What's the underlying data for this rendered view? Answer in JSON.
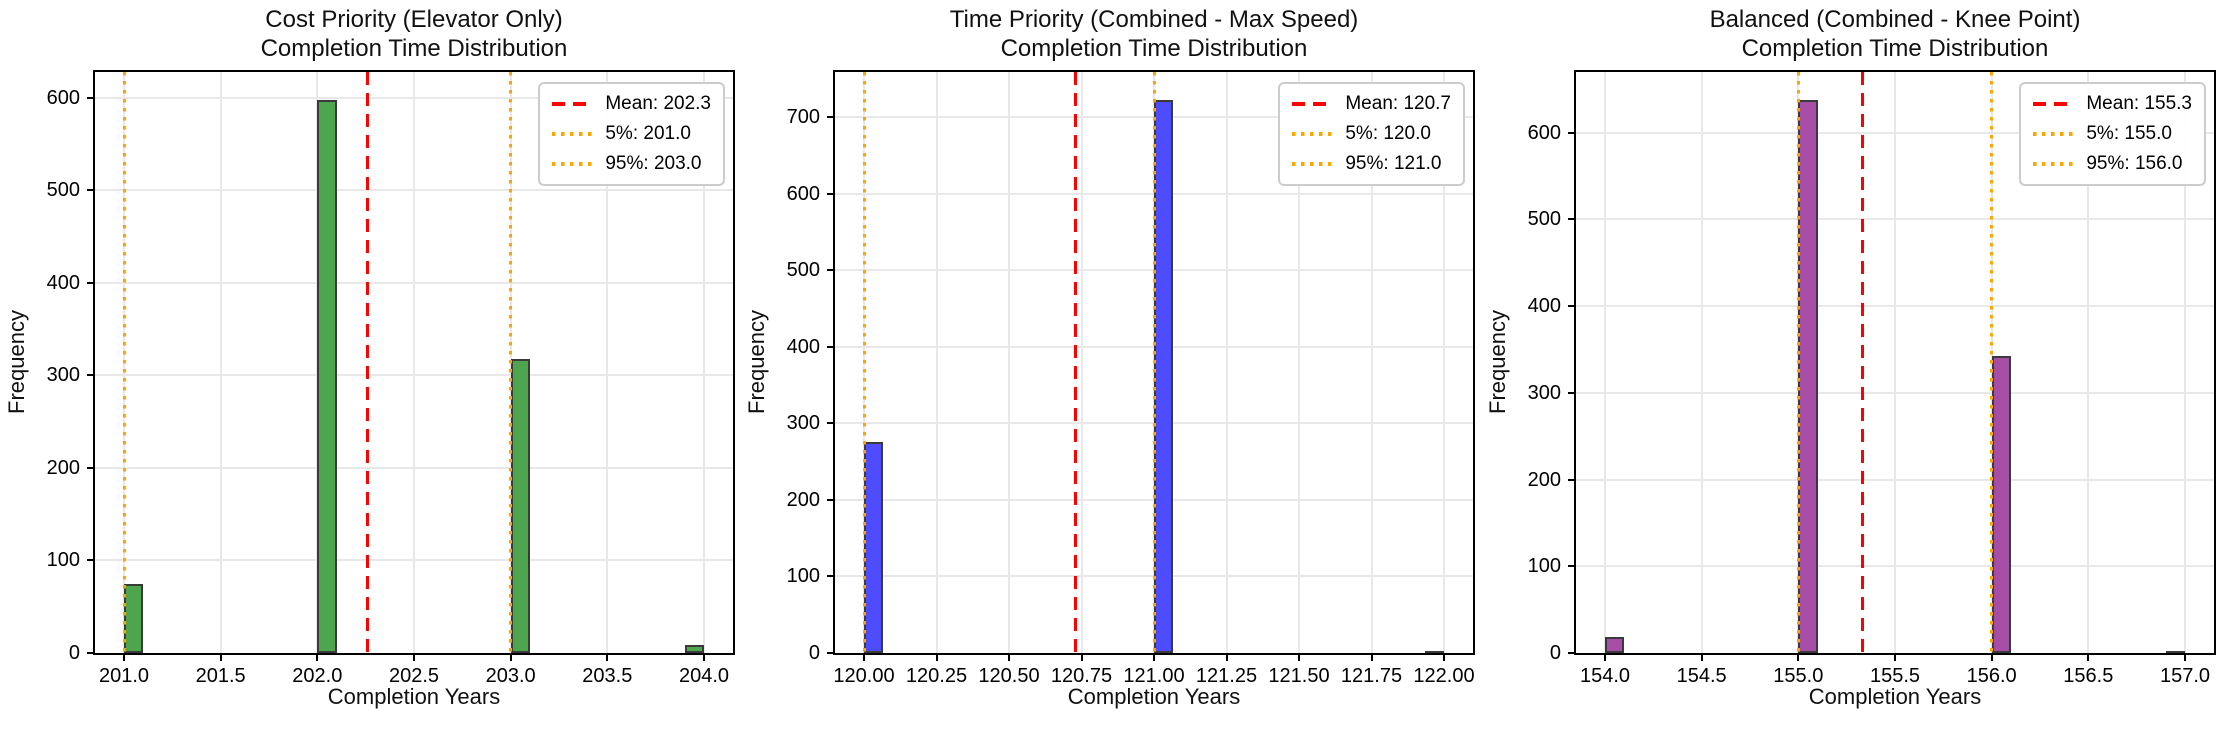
{
  "figure": {
    "background": "#ffffff"
  },
  "chart_data": [
    {
      "type": "bar",
      "title_line1": "Cost Priority (Elevator Only)",
      "title_line2": "Completion Time Distribution",
      "xlabel": "Completion Years",
      "ylabel": "Frequency",
      "bar_color": "#4da64d",
      "bar_edge_color": "#3a3a3a",
      "grid": true,
      "legend_position": "upper right",
      "xlim": [
        200.85,
        204.15
      ],
      "ylim": [
        0,
        628
      ],
      "xtick_values": [
        201.0,
        201.5,
        202.0,
        202.5,
        203.0,
        203.5,
        204.0
      ],
      "xtick_labels": [
        "201.0",
        "201.5",
        "202.0",
        "202.5",
        "203.0",
        "203.5",
        "204.0"
      ],
      "ytick_values": [
        0,
        100,
        200,
        300,
        400,
        500,
        600
      ],
      "ytick_labels": [
        "0",
        "100",
        "200",
        "300",
        "400",
        "500",
        "600"
      ],
      "bars": [
        {
          "x0": 201.0,
          "x1": 201.1,
          "freq": 75
        },
        {
          "x0": 202.0,
          "x1": 202.1,
          "freq": 598
        },
        {
          "x0": 203.0,
          "x1": 203.1,
          "freq": 318
        },
        {
          "x0": 203.9,
          "x1": 204.0,
          "freq": 9
        }
      ],
      "mean": {
        "value": 202.26,
        "label": "Mean: 202.3",
        "color": "#ff0000",
        "style": "dashed"
      },
      "p5": {
        "value": 201.0,
        "label": "5%: 201.0",
        "color": "#ffa500",
        "style": "dotted"
      },
      "p95": {
        "value": 203.0,
        "label": "95%: 203.0",
        "color": "#ffa500",
        "style": "dotted"
      }
    },
    {
      "type": "bar",
      "title_line1": "Time Priority (Combined - Max Speed)",
      "title_line2": "Completion Time Distribution",
      "xlabel": "Completion Years",
      "ylabel": "Frequency",
      "bar_color": "#4d4dff",
      "bar_edge_color": "#3a3a3a",
      "grid": true,
      "legend_position": "upper right",
      "xlim": [
        119.9,
        122.1
      ],
      "ylim": [
        0,
        759
      ],
      "xtick_values": [
        120.0,
        120.25,
        120.5,
        120.75,
        121.0,
        121.25,
        121.5,
        121.75,
        122.0
      ],
      "xtick_labels": [
        "120.00",
        "120.25",
        "120.50",
        "120.75",
        "121.00",
        "121.25",
        "121.50",
        "121.75",
        "122.00"
      ],
      "ytick_values": [
        0,
        100,
        200,
        300,
        400,
        500,
        600,
        700
      ],
      "ytick_labels": [
        "0",
        "100",
        "200",
        "300",
        "400",
        "500",
        "600",
        "700"
      ],
      "bars": [
        {
          "x0": 120.0,
          "x1": 120.0667,
          "freq": 275
        },
        {
          "x0": 121.0,
          "x1": 121.0667,
          "freq": 723
        },
        {
          "x0": 121.9333,
          "x1": 122.0,
          "freq": 2
        }
      ],
      "mean": {
        "value": 120.73,
        "label": "Mean: 120.7",
        "color": "#ff0000",
        "style": "dashed"
      },
      "p5": {
        "value": 120.0,
        "label": "5%: 120.0",
        "color": "#ffa500",
        "style": "dotted"
      },
      "p95": {
        "value": 121.0,
        "label": "95%: 121.0",
        "color": "#ffa500",
        "style": "dotted"
      }
    },
    {
      "type": "bar",
      "title_line1": "Balanced (Combined - Knee Point)",
      "title_line2": "Completion Time Distribution",
      "xlabel": "Completion Years",
      "ylabel": "Frequency",
      "bar_color": "#a64da6",
      "bar_edge_color": "#3a3a3a",
      "grid": true,
      "legend_position": "upper right",
      "xlim": [
        153.85,
        157.15
      ],
      "ylim": [
        0,
        670
      ],
      "xtick_values": [
        154.0,
        154.5,
        155.0,
        155.5,
        156.0,
        156.5,
        157.0
      ],
      "xtick_labels": [
        "154.0",
        "154.5",
        "155.0",
        "155.5",
        "156.0",
        "156.5",
        "157.0"
      ],
      "ytick_values": [
        0,
        100,
        200,
        300,
        400,
        500,
        600
      ],
      "ytick_labels": [
        "0",
        "100",
        "200",
        "300",
        "400",
        "500",
        "600"
      ],
      "bars": [
        {
          "x0": 154.0,
          "x1": 154.1,
          "freq": 18
        },
        {
          "x0": 155.0,
          "x1": 155.1,
          "freq": 638
        },
        {
          "x0": 156.0,
          "x1": 156.1,
          "freq": 342
        },
        {
          "x0": 156.9,
          "x1": 157.0,
          "freq": 2
        }
      ],
      "mean": {
        "value": 155.33,
        "label": "Mean: 155.3",
        "color": "#ff0000",
        "style": "dashed"
      },
      "p5": {
        "value": 155.0,
        "label": "5%: 155.0",
        "color": "#ffa500",
        "style": "dotted"
      },
      "p95": {
        "value": 156.0,
        "label": "95%: 156.0",
        "color": "#ffa500",
        "style": "dotted"
      }
    }
  ]
}
